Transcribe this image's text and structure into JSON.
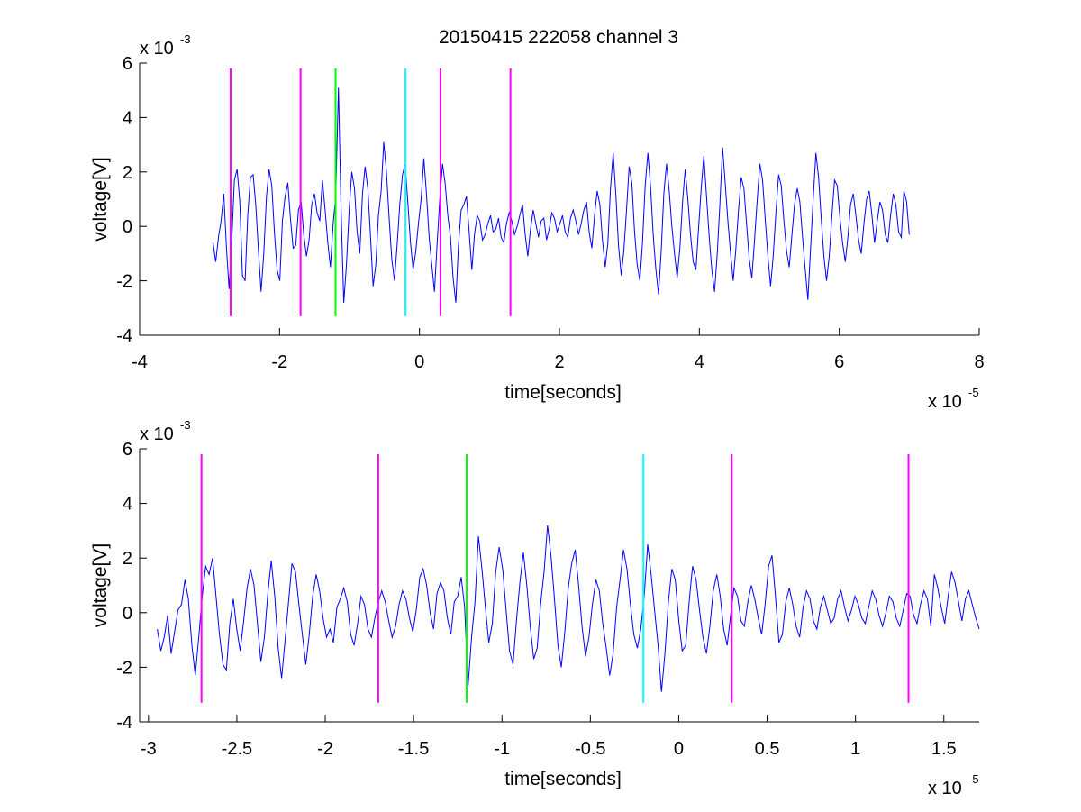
{
  "figure": {
    "title": "20150415 222058 channel 3",
    "background": "#ffffff"
  },
  "chart_data": [
    {
      "type": "line",
      "xlabel": "time[seconds]",
      "ylabel": "voltage[V]",
      "x_exponent_label": "x 10",
      "x_exponent": "-5",
      "y_exponent_label": "x 10",
      "y_exponent": "-3",
      "xlim": [
        -4,
        8
      ],
      "ylim": [
        -4,
        6
      ],
      "xticks": [
        -4,
        -2,
        0,
        2,
        4,
        6,
        8
      ],
      "xtick_labels": [
        "-4",
        "-2",
        "0",
        "2",
        "4",
        "6",
        "8"
      ],
      "yticks": [
        -4,
        -2,
        0,
        2,
        4,
        6
      ],
      "ytick_labels": [
        "-4",
        "-2",
        "0",
        "2",
        "4",
        "6"
      ],
      "grid": false,
      "series": [
        {
          "color": "#0000ff",
          "x_range": [
            -2.95,
            7.0
          ],
          "y": [
            -0.6,
            -1.3,
            -0.4,
            0.2,
            1.2,
            -0.8,
            -2.3,
            -0.5,
            1.7,
            2.1,
            0.9,
            -1.8,
            -2.0,
            0.4,
            1.8,
            1.9,
            0.8,
            -0.9,
            -2.4,
            -1.0,
            1.1,
            2.1,
            1.5,
            -0.2,
            -1.6,
            -2.0,
            0.2,
            1.1,
            1.6,
            0.3,
            -0.8,
            -0.7,
            0.6,
            0.9,
            -0.3,
            -1.1,
            -0.5,
            0.8,
            1.2,
            0.5,
            0.2,
            1.7,
            0.6,
            -0.6,
            -1.5,
            0.1,
            1.1,
            5.1,
            0.5,
            -2.8,
            -1.4,
            0.6,
            2.0,
            1.4,
            -0.2,
            -1.0,
            1.2,
            2.2,
            1.4,
            -0.3,
            -2.2,
            -1.4,
            0.4,
            1.3,
            3.1,
            2.0,
            0.3,
            -1.2,
            -2.0,
            -0.7,
            0.8,
            1.9,
            2.3,
            0.9,
            -0.6,
            -1.6,
            -0.9,
            0.1,
            1.0,
            2.5,
            1.2,
            -0.4,
            -1.4,
            -2.4,
            -0.6,
            1.0,
            2.3,
            1.6,
            0.4,
            -0.4,
            -1.9,
            -2.8,
            -0.7,
            0.6,
            0.8,
            1.1,
            -0.2,
            -1.6,
            -0.3,
            0.4,
            0.2,
            -0.5,
            -0.3,
            0.1,
            0.4,
            -0.2,
            -0.1,
            0.3,
            -0.4,
            -0.6,
            0.1,
            0.5,
            0.2,
            -0.3,
            0.0,
            0.4,
            0.8,
            -0.3,
            -1.1,
            -0.1,
            0.6,
            0.1,
            -0.4,
            0.2,
            0.3,
            -0.5,
            -0.1,
            0.5,
            0.3,
            -0.2,
            0.1,
            0.4,
            -0.2,
            -0.4,
            0.3,
            0.6,
            0.2,
            -0.3,
            0.1,
            0.6,
            0.9,
            -0.2,
            -0.8,
            0.4,
            1.3,
            0.8,
            -0.5,
            -1.5,
            -0.6,
            1.4,
            2.7,
            1.2,
            -0.7,
            -1.8,
            -0.9,
            0.6,
            2.2,
            1.6,
            -0.2,
            -1.4,
            -2.0,
            -0.6,
            1.5,
            2.7,
            1.5,
            -0.3,
            -1.6,
            -2.5,
            -0.9,
            1.2,
            2.3,
            1.3,
            0.0,
            -1.0,
            -1.9,
            -0.8,
            0.9,
            2.1,
            1.0,
            -0.3,
            -1.3,
            -1.6,
            -0.1,
            1.4,
            2.6,
            1.1,
            -0.4,
            -1.6,
            -2.4,
            -1.0,
            0.8,
            2.9,
            1.6,
            0.2,
            -1.0,
            -2.0,
            -0.8,
            0.6,
            1.8,
            1.4,
            0.1,
            -1.2,
            -1.9,
            -0.5,
            1.0,
            2.3,
            1.7,
            0.3,
            -1.1,
            -2.2,
            -1.1,
            0.5,
            1.9,
            1.5,
            0.2,
            -0.9,
            -1.5,
            -0.3,
            0.8,
            1.4,
            0.9,
            -0.4,
            -1.6,
            -2.7,
            -0.8,
            1.0,
            2.7,
            1.8,
            0.3,
            -1.1,
            -2.0,
            -1.1,
            0.4,
            1.7,
            1.5,
            0.3,
            -0.6,
            -1.3,
            -0.4,
            0.8,
            1.2,
            0.4,
            -0.5,
            -1.0,
            0.1,
            1.0,
            1.3,
            0.4,
            -0.6,
            0.2,
            0.9,
            0.6,
            -0.3,
            -0.6,
            0.4,
            1.2,
            0.8,
            -0.2,
            -0.4,
            1.3,
            0.9,
            -0.3
          ]
        }
      ],
      "markers": [
        {
          "x": -2.7,
          "color": "#ff00ff"
        },
        {
          "x": -1.7,
          "color": "#ff00ff"
        },
        {
          "x": -1.2,
          "color": "#00ff00"
        },
        {
          "x": -0.2,
          "color": "#00ffff"
        },
        {
          "x": 0.3,
          "color": "#ff00ff"
        },
        {
          "x": 1.3,
          "color": "#ff00ff"
        }
      ],
      "marker_yrange": [
        -3.3,
        5.8
      ]
    },
    {
      "type": "line",
      "xlabel": "time[seconds]",
      "ylabel": "voltage[V]",
      "x_exponent_label": "x 10",
      "x_exponent": "-5",
      "y_exponent_label": "x 10",
      "y_exponent": "-3",
      "xlim": [
        -3.05,
        1.7
      ],
      "ylim": [
        -4,
        6
      ],
      "xticks": [
        -3,
        -2.5,
        -2,
        -1.5,
        -1,
        -0.5,
        0,
        0.5,
        1,
        1.5
      ],
      "xtick_labels": [
        "-3",
        "-2.5",
        "-2",
        "-1.5",
        "-1",
        "-0.5",
        "0",
        "0.5",
        "1",
        "1.5"
      ],
      "yticks": [
        -4,
        -2,
        0,
        2,
        4,
        6
      ],
      "ytick_labels": [
        "-4",
        "-2",
        "0",
        "2",
        "4",
        "6"
      ],
      "grid": false,
      "series": [
        {
          "color": "#0000ff",
          "x_range": [
            -2.95,
            1.7
          ],
          "y": [
            -0.6,
            -1.4,
            -0.9,
            -0.1,
            -1.5,
            -0.7,
            0.1,
            0.3,
            1.2,
            0.5,
            -1.2,
            -2.3,
            -0.9,
            0.6,
            1.7,
            1.4,
            2.0,
            0.6,
            -0.8,
            -1.9,
            -2.1,
            -0.4,
            0.5,
            -0.6,
            -1.4,
            -0.3,
            0.9,
            1.6,
            1.0,
            -0.4,
            -1.8,
            -0.9,
            0.7,
            1.9,
            0.6,
            -1.3,
            -2.4,
            -1.0,
            0.4,
            1.8,
            1.5,
            0.3,
            -0.8,
            -1.9,
            -0.8,
            0.6,
            1.4,
            0.8,
            -0.2,
            -0.9,
            -0.6,
            -1.1,
            0.2,
            0.5,
            0.9,
            0.4,
            -0.8,
            -1.2,
            -0.4,
            0.6,
            0.3,
            -0.6,
            -0.9,
            -0.2,
            0.4,
            0.8,
            0.4,
            -0.3,
            -0.9,
            -0.5,
            0.3,
            0.8,
            0.5,
            -0.2,
            -0.7,
            0.1,
            1.3,
            1.6,
            1.0,
            0.0,
            -0.6,
            0.7,
            1.1,
            0.8,
            -0.2,
            -0.8,
            0.4,
            0.6,
            1.3,
            0.2,
            -2.7,
            -0.9,
            0.4,
            2.8,
            1.6,
            0.2,
            -1.1,
            -0.4,
            1.5,
            2.4,
            1.6,
            0.1,
            -1.4,
            -1.9,
            -0.3,
            1.1,
            2.2,
            1.0,
            -0.5,
            -1.7,
            -1.3,
            0.3,
            1.5,
            3.2,
            2.1,
            0.5,
            -1.2,
            -2.0,
            -0.7,
            0.9,
            1.8,
            2.3,
            1.0,
            -0.5,
            -1.6,
            -0.9,
            0.3,
            1.2,
            0.8,
            -0.4,
            -1.3,
            -2.3,
            -1.5,
            0.2,
            1.2,
            2.3,
            1.6,
            0.3,
            -0.8,
            -1.3,
            -0.6,
            0.6,
            2.5,
            1.4,
            0.1,
            -1.2,
            -2.9,
            -1.5,
            0.4,
            1.6,
            1.2,
            -0.3,
            -1.4,
            -1.2,
            0.4,
            1.7,
            1.2,
            0.1,
            -0.9,
            -1.5,
            -0.5,
            0.8,
            1.4,
            0.6,
            -0.6,
            -1.2,
            -0.1,
            0.9,
            0.6,
            -0.3,
            -0.5,
            0.4,
            1.0,
            0.5,
            -0.2,
            -0.8,
            0.3,
            1.7,
            2.1,
            0.6,
            -1.1,
            -0.8,
            0.4,
            0.9,
            0.3,
            -0.5,
            -0.9,
            0.2,
            0.8,
            0.5,
            -0.3,
            -0.6,
            0.2,
            0.6,
            0.1,
            -0.4,
            -0.2,
            0.5,
            0.8,
            0.2,
            -0.3,
            0.1,
            0.6,
            0.3,
            -0.2,
            -0.4,
            0.2,
            0.8,
            0.5,
            -0.1,
            -0.5,
            0.0,
            0.6,
            0.4,
            -0.2,
            -0.5,
            0.1,
            0.7,
            0.6,
            -0.1,
            -0.4,
            0.3,
            0.8,
            0.5,
            -0.5,
            1.4,
            0.9,
            0.2,
            -0.4,
            0.6,
            1.5,
            1.1,
            0.4,
            -0.3,
            0.5,
            0.8,
            0.3,
            -0.2,
            -0.6
          ]
        }
      ],
      "markers": [
        {
          "x": -2.7,
          "color": "#ff00ff"
        },
        {
          "x": -1.7,
          "color": "#ff00ff"
        },
        {
          "x": -1.2,
          "color": "#00ff00"
        },
        {
          "x": -0.2,
          "color": "#00ffff"
        },
        {
          "x": 0.3,
          "color": "#ff00ff"
        },
        {
          "x": 1.3,
          "color": "#ff00ff"
        }
      ],
      "marker_yrange": [
        -3.3,
        5.8
      ]
    }
  ]
}
